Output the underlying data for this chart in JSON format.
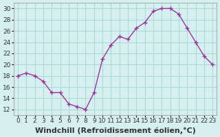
{
  "x": [
    0,
    1,
    2,
    3,
    4,
    5,
    6,
    7,
    8,
    9,
    10,
    11,
    12,
    13,
    14,
    15,
    16,
    17,
    18,
    19,
    20,
    21,
    22,
    23
  ],
  "y": [
    18,
    18.5,
    18,
    17,
    15,
    15,
    13,
    12.5,
    12,
    15,
    21,
    23.5,
    25,
    24.5,
    26.5,
    27.5,
    29.5,
    30,
    30,
    29,
    26.5,
    24,
    21.5,
    20
  ],
  "line_color": "#993399",
  "marker_color": "#993399",
  "background_color": "#d6f0f0",
  "grid_color": "#b0d8d8",
  "xlabel": "Windchill (Refroidissement éolien,°C)",
  "xlabel_fontsize": 8,
  "tick_fontsize": 6.5,
  "ylim": [
    11,
    31
  ],
  "yticks": [
    12,
    14,
    16,
    18,
    20,
    22,
    24,
    26,
    28,
    30
  ],
  "xlim": [
    -0.5,
    23.5
  ],
  "title": ""
}
